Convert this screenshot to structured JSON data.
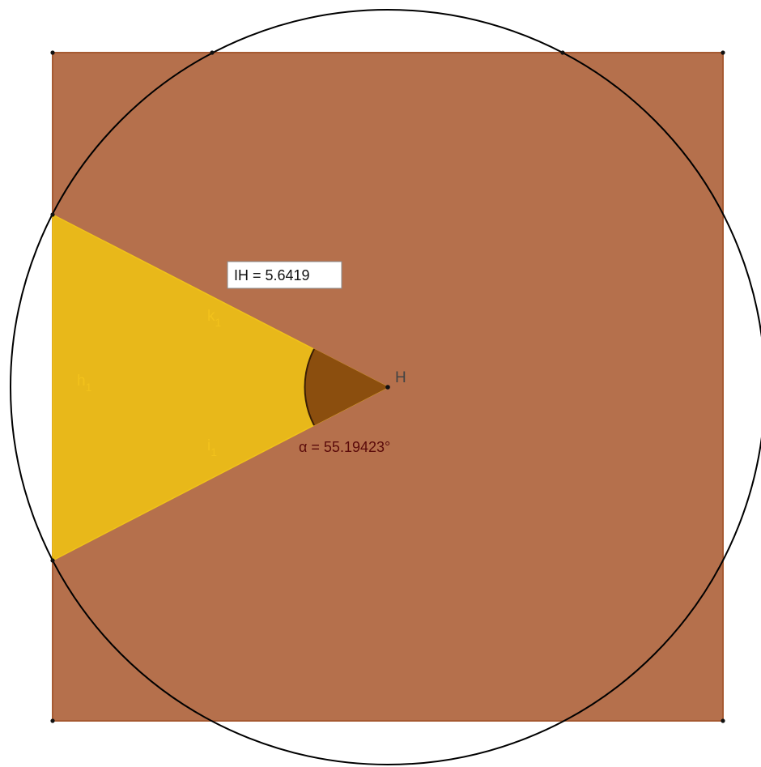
{
  "colors": {
    "square_fill": "#b5704c",
    "square_stroke": "#a65a32",
    "sector_fill": "#e8b81a",
    "sector_stroke": "#f0c21a",
    "angle_fill": "#8b4e0e",
    "angle_stroke": "#3a1e05",
    "circle_stroke": "#000000",
    "point_fill": "#111111",
    "segment_label_color": "#f2c21c",
    "point_label_color": "#444444",
    "angle_label_color": "#5a0a0a",
    "caption_bg": "#ffffff",
    "caption_border": "#8a8a8a"
  },
  "labels": {
    "point_H": "H",
    "segment_k": "k",
    "segment_k_sub": "1",
    "segment_h": "h",
    "segment_h_sub": "1",
    "segment_i": "i",
    "segment_i_sub": "1",
    "distance_caption": "IH = 5.6419",
    "angle_caption": "α = 55.19423°"
  }
}
